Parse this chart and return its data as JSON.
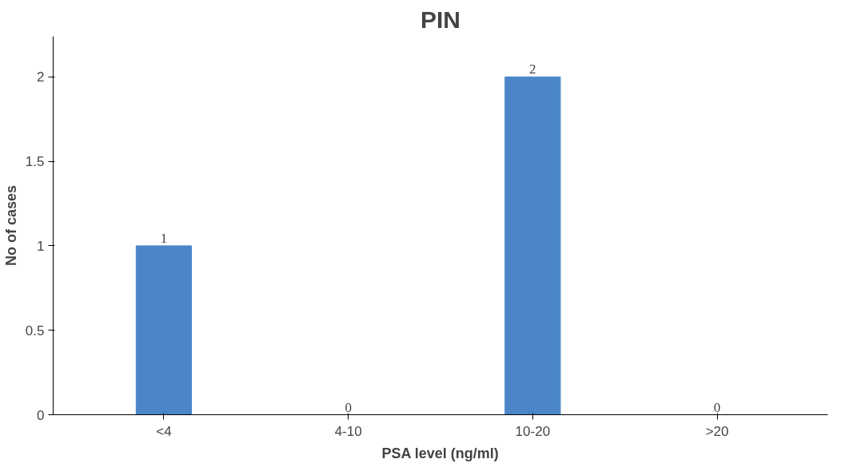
{
  "chart_data": {
    "type": "bar",
    "title": "PIN",
    "xlabel": "PSA level (ng/ml)",
    "ylabel": "No of cases",
    "categories": [
      "<4",
      "4-10",
      "10-20",
      ">20"
    ],
    "values": [
      1,
      0,
      2,
      0
    ],
    "color": "#4a86c8",
    "ylim": [
      0,
      2
    ],
    "yticks": [
      0,
      0.5,
      1,
      1.5,
      2
    ],
    "data_labels": true,
    "grid": false
  }
}
